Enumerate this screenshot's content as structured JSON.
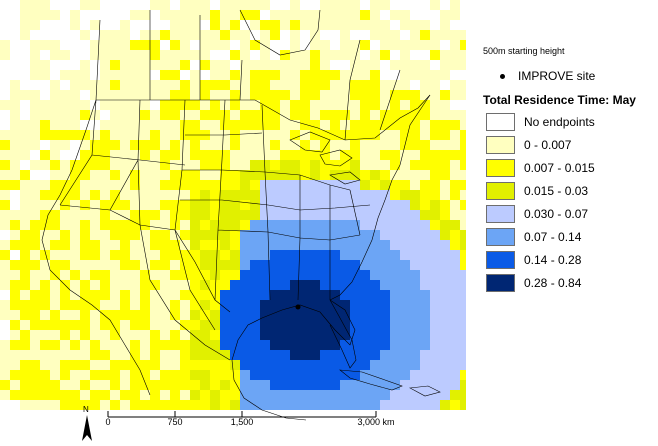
{
  "legend": {
    "subtitle": "500m starting height",
    "site_label": "IMPROVE site",
    "title": "Total Residence Time: May",
    "classes": [
      {
        "label": "No endpoints",
        "color": "#ffffff"
      },
      {
        "label": "0 - 0.007",
        "color": "#ffffc0"
      },
      {
        "label": "0.007 - 0.015",
        "color": "#ffff00"
      },
      {
        "label": "0.015 - 0.03",
        "color": "#e1f000"
      },
      {
        "label": "0.030 - 0.07",
        "color": "#bccbff"
      },
      {
        "label": "0.07 - 0.14",
        "color": "#6ca5f5"
      },
      {
        "label": "0.14 - 0.28",
        "color": "#0a5ae6"
      },
      {
        "label": "0.28 - 0.84",
        "color": "#002673"
      }
    ]
  },
  "scale_bar": {
    "north_label": "N",
    "ticks": [
      "0",
      "750",
      "1,500",
      "3,000 km"
    ]
  },
  "map": {
    "land_color": "#ffffff",
    "boundary_color": "#000000"
  }
}
